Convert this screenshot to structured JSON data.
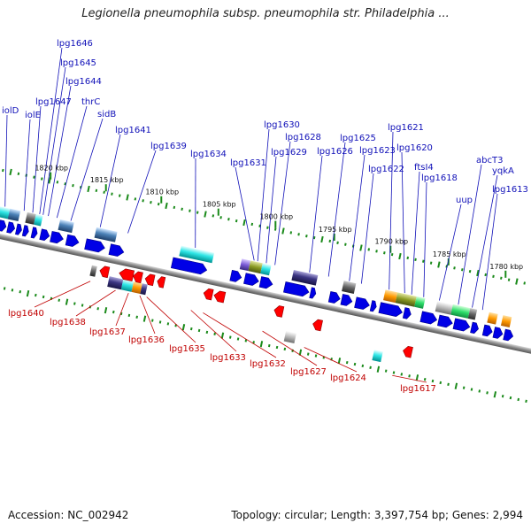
{
  "title": "Legionella pneumophila subsp. pneumophila str. Philadelphia ...",
  "footer": {
    "accession": "Accession: NC_002942",
    "summary": "Topology: circular; Length: 3,397,754 bp; Genes: 2,994"
  },
  "colors": {
    "forward_gene": "#0000e6",
    "reverse_gene": "#ff0000",
    "forward_label": "#1010b8",
    "reverse_label": "#c00000",
    "ruler": "#1a8a1a",
    "backbone": "#888888"
  },
  "ticks": [
    "1820 kbp",
    "1815 kbp",
    "1810 kbp",
    "1805 kbp",
    "1800 kbp",
    "1795 kbp",
    "1790 kbp",
    "1785 kbp",
    "1780 kbp"
  ],
  "forward_genes": [
    "iolD",
    "iolE",
    "lpg1647",
    "lpg1646",
    "lpg1645",
    "lpg1644",
    "thrC",
    "sidB",
    "lpg1641",
    "lpg1639",
    "lpg1634",
    "lpg1631",
    "lpg1630",
    "lpg1629",
    "lpg1628",
    "lpg1626",
    "lpg1625",
    "lpg1623",
    "lpg1622",
    "lpg1621",
    "lpg1620",
    "ftsI4",
    "lpg1618",
    "uup",
    "abcT3",
    "yqkA",
    "lpg1613"
  ],
  "reverse_genes": [
    "lpg1640",
    "lpg1638",
    "lpg1637",
    "lpg1636",
    "lpg1635",
    "lpg1633",
    "lpg1632",
    "lpg1627",
    "lpg1624",
    "lpg1617"
  ]
}
